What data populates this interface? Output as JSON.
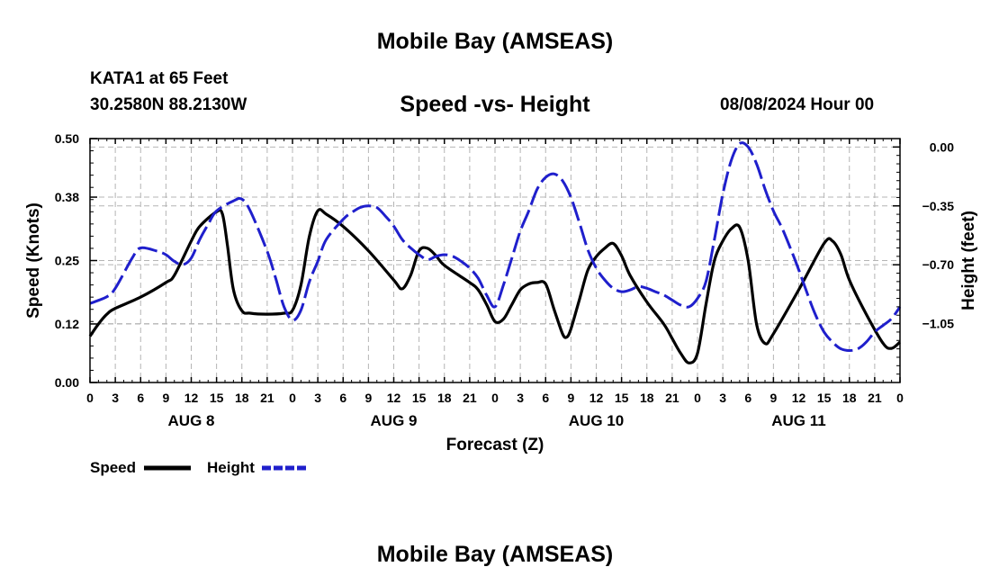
{
  "header": {
    "title_top": "Mobile Bay (AMSEAS)",
    "station": "KATA1 at 65 Feet",
    "coords": "30.2580N  88.2130W",
    "chart_title": "Speed -vs- Height",
    "timestamp": "08/08/2024 Hour 00",
    "title_bottom": "Mobile Bay (AMSEAS)"
  },
  "legend": {
    "speed_label": "Speed",
    "height_label": "Height"
  },
  "colors": {
    "speed": "#000000",
    "height": "#1f1fcc",
    "grid": "#b4b4b4"
  },
  "chart_data": {
    "type": "line",
    "title": "Speed -vs- Height",
    "xlabel": "Forecast (Z)",
    "ylabel": "Speed (Knots)",
    "y2label": "Height (feet)",
    "xlim": [
      0,
      96
    ],
    "ylim": [
      0,
      0.5
    ],
    "y2lim": [
      -1.4,
      0.05
    ],
    "x_tick_labels": [
      "0",
      "3",
      "6",
      "9",
      "12",
      "15",
      "18",
      "21",
      "0",
      "3",
      "6",
      "9",
      "12",
      "15",
      "18",
      "21",
      "0",
      "3",
      "6",
      "9",
      "12",
      "15",
      "18",
      "21",
      "0",
      "3",
      "6",
      "9",
      "12",
      "15",
      "18",
      "21",
      "0"
    ],
    "y_tick_values": [
      0.0,
      0.12,
      0.25,
      0.38,
      0.5
    ],
    "y_tick_labels": [
      "0.00",
      "0.12",
      "0.25",
      "0.38",
      "0.50"
    ],
    "y2_tick_values": [
      0.0,
      -0.35,
      -0.7,
      -1.05
    ],
    "y2_tick_labels": [
      "0.00",
      "−0.35",
      "−0.70",
      "−1.05"
    ],
    "day_labels": [
      {
        "label": "AUG 8",
        "x": 12
      },
      {
        "label": "AUG 9",
        "x": 36
      },
      {
        "label": "AUG 10",
        "x": 60
      },
      {
        "label": "AUG 11",
        "x": 84
      }
    ],
    "grid": true,
    "series": [
      {
        "name": "Speed",
        "axis": "left",
        "style": "solid",
        "points": [
          [
            0,
            0.095
          ],
          [
            1,
            0.12
          ],
          [
            2,
            0.14
          ],
          [
            3,
            0.152
          ],
          [
            6,
            0.175
          ],
          [
            9,
            0.205
          ],
          [
            10,
            0.22
          ],
          [
            12,
            0.29
          ],
          [
            13,
            0.32
          ],
          [
            15,
            0.35
          ],
          [
            15.7,
            0.345
          ],
          [
            16.3,
            0.28
          ],
          [
            17,
            0.19
          ],
          [
            18,
            0.147
          ],
          [
            19,
            0.142
          ],
          [
            21,
            0.14
          ],
          [
            23,
            0.142
          ],
          [
            24,
            0.148
          ],
          [
            25,
            0.2
          ],
          [
            26,
            0.3
          ],
          [
            27,
            0.352
          ],
          [
            28,
            0.345
          ],
          [
            30,
            0.32
          ],
          [
            33,
            0.27
          ],
          [
            36,
            0.21
          ],
          [
            37,
            0.192
          ],
          [
            38,
            0.22
          ],
          [
            39,
            0.27
          ],
          [
            40,
            0.275
          ],
          [
            41,
            0.26
          ],
          [
            42,
            0.24
          ],
          [
            45,
            0.205
          ],
          [
            46,
            0.19
          ],
          [
            47,
            0.16
          ],
          [
            48,
            0.125
          ],
          [
            49,
            0.13
          ],
          [
            50,
            0.16
          ],
          [
            51,
            0.19
          ],
          [
            52,
            0.202
          ],
          [
            53,
            0.205
          ],
          [
            54,
            0.202
          ],
          [
            55,
            0.15
          ],
          [
            56,
            0.1
          ],
          [
            56.5,
            0.093
          ],
          [
            57,
            0.11
          ],
          [
            58,
            0.17
          ],
          [
            59,
            0.23
          ],
          [
            60,
            0.258
          ],
          [
            61,
            0.275
          ],
          [
            62,
            0.285
          ],
          [
            63,
            0.26
          ],
          [
            64,
            0.22
          ],
          [
            66,
            0.165
          ],
          [
            68,
            0.12
          ],
          [
            69,
            0.09
          ],
          [
            70,
            0.06
          ],
          [
            71,
            0.04
          ],
          [
            72,
            0.06
          ],
          [
            73,
            0.16
          ],
          [
            74,
            0.25
          ],
          [
            75,
            0.29
          ],
          [
            76,
            0.315
          ],
          [
            77,
            0.318
          ],
          [
            78,
            0.25
          ],
          [
            79,
            0.12
          ],
          [
            80,
            0.08
          ],
          [
            81,
            0.1
          ],
          [
            84,
            0.19
          ],
          [
            87,
            0.285
          ],
          [
            88,
            0.29
          ],
          [
            89,
            0.262
          ],
          [
            90,
            0.21
          ],
          [
            92,
            0.14
          ],
          [
            94,
            0.08
          ],
          [
            95,
            0.07
          ],
          [
            96,
            0.083
          ]
        ]
      },
      {
        "name": "Height",
        "axis": "right",
        "style": "dashed",
        "points": [
          [
            0,
            -0.93
          ],
          [
            2,
            -0.89
          ],
          [
            3,
            -0.84
          ],
          [
            5,
            -0.66
          ],
          [
            6,
            -0.6
          ],
          [
            8,
            -0.62
          ],
          [
            9,
            -0.64
          ],
          [
            10,
            -0.68
          ],
          [
            11,
            -0.7
          ],
          [
            12,
            -0.66
          ],
          [
            13,
            -0.55
          ],
          [
            14,
            -0.46
          ],
          [
            15,
            -0.38
          ],
          [
            17,
            -0.32
          ],
          [
            18,
            -0.31
          ],
          [
            19,
            -0.38
          ],
          [
            21,
            -0.62
          ],
          [
            22,
            -0.78
          ],
          [
            23,
            -0.95
          ],
          [
            24,
            -1.03
          ],
          [
            25,
            -0.97
          ],
          [
            26,
            -0.8
          ],
          [
            27,
            -0.68
          ],
          [
            28,
            -0.55
          ],
          [
            30,
            -0.43
          ],
          [
            31,
            -0.39
          ],
          [
            32,
            -0.36
          ],
          [
            33,
            -0.35
          ],
          [
            34,
            -0.36
          ],
          [
            35,
            -0.41
          ],
          [
            36,
            -0.47
          ],
          [
            37,
            -0.55
          ],
          [
            38,
            -0.6
          ],
          [
            39,
            -0.64
          ],
          [
            40,
            -0.67
          ],
          [
            41,
            -0.65
          ],
          [
            42,
            -0.64
          ],
          [
            43,
            -0.65
          ],
          [
            44,
            -0.68
          ],
          [
            45,
            -0.72
          ],
          [
            46,
            -0.78
          ],
          [
            47,
            -0.88
          ],
          [
            48,
            -0.95
          ],
          [
            49,
            -0.82
          ],
          [
            50,
            -0.66
          ],
          [
            51,
            -0.5
          ],
          [
            52,
            -0.38
          ],
          [
            53,
            -0.25
          ],
          [
            54,
            -0.18
          ],
          [
            55,
            -0.16
          ],
          [
            56,
            -0.2
          ],
          [
            57,
            -0.3
          ],
          [
            58,
            -0.45
          ],
          [
            59,
            -0.61
          ],
          [
            60,
            -0.72
          ],
          [
            61,
            -0.79
          ],
          [
            62,
            -0.84
          ],
          [
            63,
            -0.86
          ],
          [
            64,
            -0.85
          ],
          [
            65,
            -0.83
          ],
          [
            66,
            -0.84
          ],
          [
            67,
            -0.86
          ],
          [
            68,
            -0.88
          ],
          [
            69,
            -0.91
          ],
          [
            70,
            -0.94
          ],
          [
            71,
            -0.95
          ],
          [
            72,
            -0.9
          ],
          [
            73,
            -0.8
          ],
          [
            74,
            -0.55
          ],
          [
            75,
            -0.28
          ],
          [
            76,
            -0.08
          ],
          [
            77,
            0.02
          ],
          [
            78,
            0.0
          ],
          [
            79,
            -0.1
          ],
          [
            80,
            -0.25
          ],
          [
            81,
            -0.38
          ],
          [
            82,
            -0.48
          ],
          [
            83,
            -0.6
          ],
          [
            84,
            -0.73
          ],
          [
            85,
            -0.87
          ],
          [
            86,
            -1.0
          ],
          [
            87,
            -1.1
          ],
          [
            88,
            -1.16
          ],
          [
            89,
            -1.2
          ],
          [
            90,
            -1.21
          ],
          [
            91,
            -1.2
          ],
          [
            92,
            -1.16
          ],
          [
            93,
            -1.1
          ],
          [
            94,
            -1.06
          ],
          [
            95,
            -1.02
          ],
          [
            96,
            -0.95
          ]
        ]
      }
    ]
  }
}
